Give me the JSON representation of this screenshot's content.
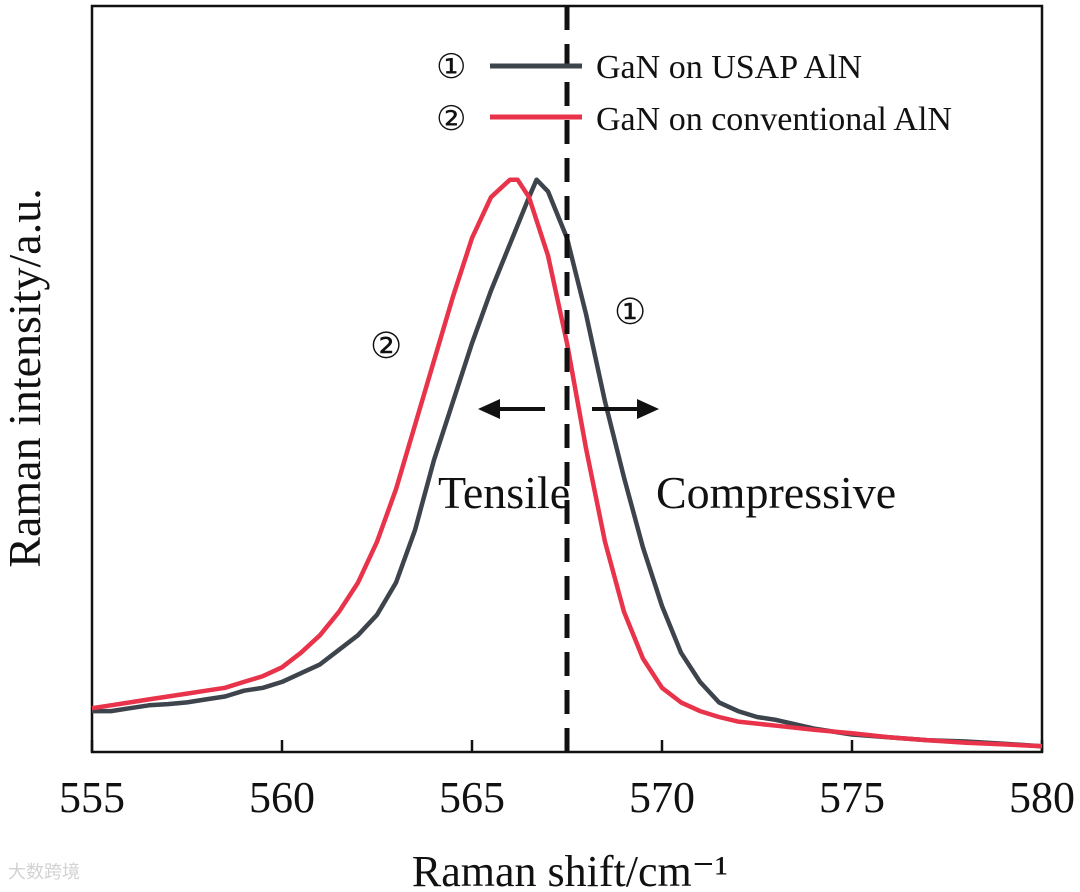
{
  "chart_data": {
    "type": "line",
    "title": "",
    "xlabel": "Raman shift/cm⁻¹",
    "ylabel": "Raman intensity/a.u.",
    "xlim": [
      555,
      580
    ],
    "ylim": [
      0,
      1
    ],
    "xticks": [
      "555",
      "560",
      "565",
      "570",
      "575",
      "580"
    ],
    "xtick_values": [
      555,
      560,
      565,
      570,
      575,
      580
    ],
    "grid": false,
    "legend_position": "top-right",
    "reference_line_x": 567.5,
    "series": [
      {
        "name": "GaN on USAP AlN",
        "marker": "①",
        "color": "#3d444c",
        "x": [
          555.0,
          555.5,
          556.0,
          556.5,
          557.0,
          557.5,
          558.0,
          558.5,
          559.0,
          559.5,
          560.0,
          560.5,
          561.0,
          561.5,
          562.0,
          562.5,
          563.0,
          563.5,
          564.0,
          564.5,
          565.0,
          565.5,
          566.0,
          566.5,
          566.7,
          567.0,
          567.5,
          568.0,
          568.5,
          569.0,
          569.5,
          570.0,
          570.5,
          571.0,
          571.5,
          572.0,
          572.5,
          573.0,
          574.0,
          575.0,
          576.0,
          577.0,
          578.0,
          579.0,
          580.0
        ],
        "y": [
          0.07,
          0.07,
          0.075,
          0.08,
          0.082,
          0.085,
          0.09,
          0.095,
          0.105,
          0.11,
          0.12,
          0.135,
          0.15,
          0.175,
          0.2,
          0.235,
          0.29,
          0.38,
          0.5,
          0.6,
          0.7,
          0.79,
          0.87,
          0.95,
          0.98,
          0.96,
          0.88,
          0.75,
          0.6,
          0.47,
          0.35,
          0.25,
          0.17,
          0.12,
          0.085,
          0.07,
          0.06,
          0.055,
          0.04,
          0.03,
          0.025,
          0.02,
          0.018,
          0.014,
          0.01
        ]
      },
      {
        "name": "GaN on conventional AlN",
        "marker": "②",
        "color": "#e8334a",
        "x": [
          555.0,
          555.5,
          556.0,
          556.5,
          557.0,
          557.5,
          558.0,
          558.5,
          559.0,
          559.5,
          560.0,
          560.5,
          561.0,
          561.5,
          562.0,
          562.5,
          563.0,
          563.5,
          564.0,
          564.5,
          565.0,
          565.5,
          566.0,
          566.2,
          566.5,
          567.0,
          567.5,
          568.0,
          568.5,
          569.0,
          569.5,
          570.0,
          570.5,
          571.0,
          571.5,
          572.0,
          573.0,
          574.0,
          575.0,
          576.0,
          577.0,
          578.0,
          579.0,
          580.0
        ],
        "y": [
          0.075,
          0.08,
          0.085,
          0.09,
          0.095,
          0.1,
          0.105,
          0.11,
          0.12,
          0.13,
          0.145,
          0.17,
          0.2,
          0.24,
          0.29,
          0.36,
          0.45,
          0.56,
          0.67,
          0.78,
          0.88,
          0.95,
          0.98,
          0.98,
          0.95,
          0.85,
          0.7,
          0.52,
          0.36,
          0.24,
          0.16,
          0.11,
          0.085,
          0.07,
          0.06,
          0.052,
          0.045,
          0.038,
          0.032,
          0.025,
          0.02,
          0.016,
          0.013,
          0.01
        ]
      }
    ],
    "annotations": {
      "curve_labels": [
        "①",
        "②"
      ],
      "tensile_label": "Tensile",
      "compressive_label": "Compressive"
    }
  },
  "watermark": "大数跨境"
}
